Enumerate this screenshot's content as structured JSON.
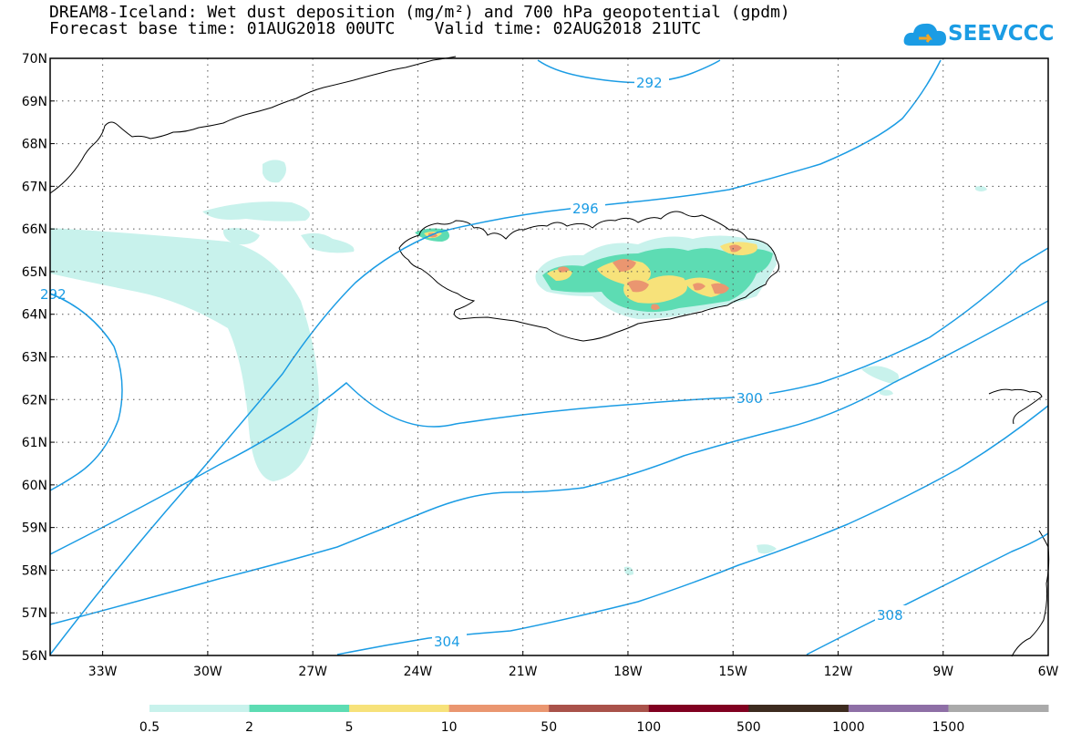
{
  "title": {
    "line1": "DREAM8-Iceland: Wet dust deposition (mg/m²) and 700 hPa geopotential (gpdm)",
    "line2": "Forecast base time: 01AUG2018 00UTC    Valid time: 02AUG2018 21UTC"
  },
  "logo": {
    "text": "SEEVCCC",
    "icon": "cloud-icon"
  },
  "map": {
    "lon_range": [
      -34.5,
      -6
    ],
    "lat_range": [
      56,
      70
    ],
    "lon_ticks": [
      "33W",
      "30W",
      "27W",
      "24W",
      "21W",
      "18W",
      "15W",
      "12W",
      "9W",
      "6W"
    ],
    "lat_ticks": [
      "70N",
      "69N",
      "68N",
      "67N",
      "66N",
      "65N",
      "64N",
      "63N",
      "62N",
      "61N",
      "60N",
      "59N",
      "58N",
      "57N",
      "56N"
    ],
    "contour_color": "#1b9ce4",
    "contour_labels": [
      "292",
      "296",
      "300",
      "304",
      "308",
      "292"
    ]
  },
  "colorbar": {
    "labels": [
      "0.5",
      "2",
      "5",
      "10",
      "50",
      "100",
      "500",
      "1000",
      "1500"
    ],
    "colors": [
      "#c8f2ec",
      "#5ddcb3",
      "#f7e27a",
      "#ea9670",
      "#a9524a",
      "#800020",
      "#3d2b1f",
      "#8e6fa6",
      "#aaaaaa"
    ]
  }
}
